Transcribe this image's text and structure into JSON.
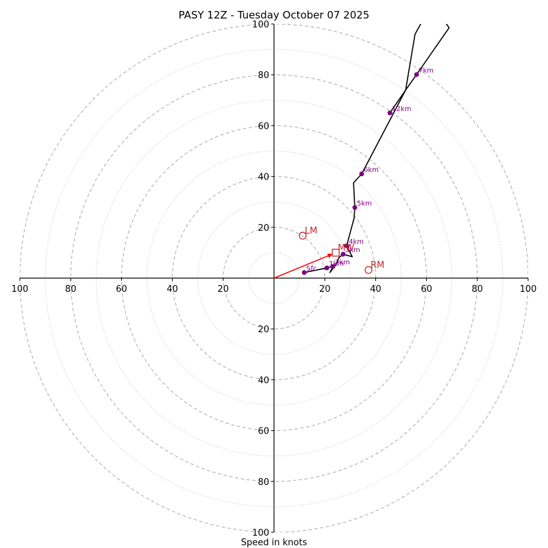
{
  "chart_data": {
    "type": "line",
    "subtype": "hodograph",
    "title": "PASY 12Z - Tuesday October 07 2025",
    "xlabel": "Speed in knots",
    "ylabel": "",
    "xlim": [
      -100,
      100
    ],
    "ylim": [
      -100,
      100
    ],
    "rings_dashed": [
      20,
      40,
      60,
      80,
      100
    ],
    "rings_dotted": [
      10,
      30,
      50,
      70,
      90
    ],
    "x_tick_labels": [
      "100",
      "80",
      "60",
      "40",
      "20",
      "20",
      "40",
      "60",
      "80",
      "100"
    ],
    "x_tick_values": [
      -100,
      -80,
      -60,
      -40,
      -20,
      20,
      40,
      60,
      80,
      100
    ],
    "y_tick_labels": [
      "100",
      "80",
      "60",
      "40",
      "20",
      "20",
      "40",
      "60",
      "80",
      "100"
    ],
    "y_tick_values": [
      100,
      80,
      60,
      40,
      20,
      -20,
      -40,
      -60,
      -80,
      -100
    ],
    "grid": true,
    "colors": {
      "trace": "#000000",
      "height_marker": "#800080",
      "storm_motion": "#c0282b",
      "mean_wind_vector": "#ff0000",
      "ring": "#b0b0b0"
    },
    "trace": {
      "name": "wind profile",
      "u": [
        11.9,
        20.8,
        23.2,
        22.0,
        24.5,
        25.5,
        27.2,
        30.8,
        28.6,
        30.0,
        31.5,
        31.8,
        31.3,
        34.5,
        51.8,
        56.1,
        68.9,
        67.5
      ],
      "v": [
        2.2,
        4.0,
        4.6,
        2.2,
        5.5,
        8.0,
        9.4,
        8.4,
        12.7,
        18.0,
        23.5,
        27.8,
        37.5,
        41.0,
        74.0,
        80.1,
        98.5,
        100.5
      ]
    },
    "trace_branch": {
      "name": "upper branch",
      "u": [
        45.6,
        51.8,
        55.5,
        58.0
      ],
      "v": [
        65.0,
        74.0,
        96.0,
        100.5
      ]
    },
    "height_markers": [
      {
        "label": "Sfc",
        "u": 11.9,
        "v": 2.2
      },
      {
        "label": "1km",
        "u": 20.8,
        "v": 4.0
      },
      {
        "label": "2km",
        "u": 23.2,
        "v": 4.6
      },
      {
        "label": "3km",
        "u": 27.2,
        "v": 9.4
      },
      {
        "label": "4km",
        "u": 28.6,
        "v": 12.7
      },
      {
        "label": "5km",
        "u": 31.8,
        "v": 27.8
      },
      {
        "label": "6km",
        "u": 34.5,
        "v": 41.0
      },
      {
        "label": "7km",
        "u": 56.1,
        "v": 80.1
      },
      {
        "label": "12km",
        "u": 45.6,
        "v": 65.0
      }
    ],
    "storm_motions": [
      {
        "label": "LM",
        "u": 11.3,
        "v": 16.7,
        "marker": "circle"
      },
      {
        "label": "MW",
        "u": 24.3,
        "v": 10.0,
        "marker": "square"
      },
      {
        "label": "RM",
        "u": 37.2,
        "v": 3.2,
        "marker": "circle"
      }
    ],
    "mean_wind_vector": {
      "from_u": 0,
      "from_v": 0,
      "to_u": 24.3,
      "to_v": 10.0
    }
  }
}
